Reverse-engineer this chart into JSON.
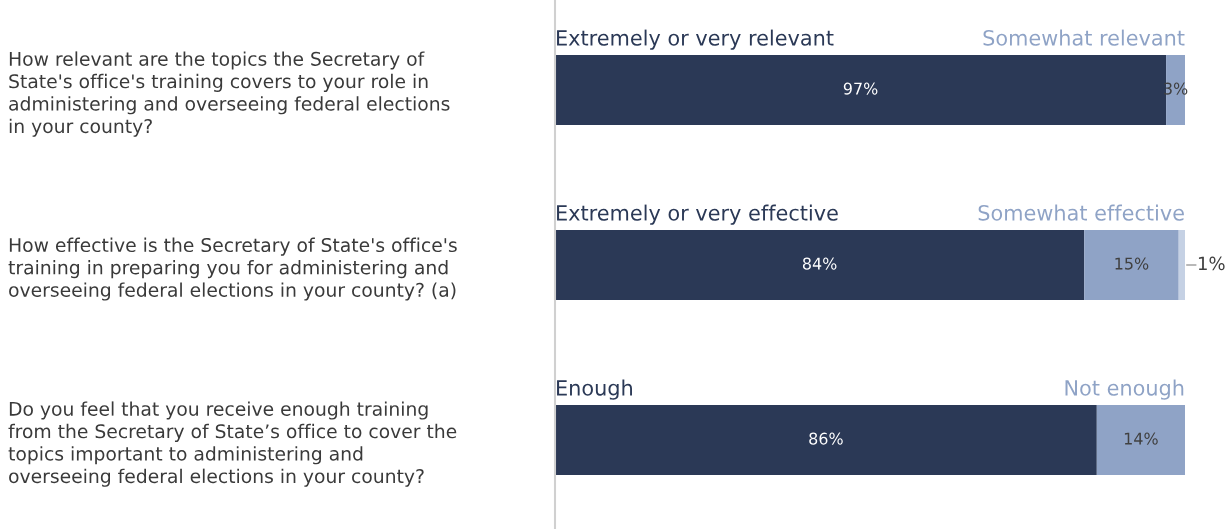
{
  "chart_data": {
    "type": "bar",
    "orientation": "horizontal",
    "stacked": true,
    "categories": [
      "How relevant are the topics the Secretary of\nState's office's training covers to your role in\nadministering and overseeing federal elections\nin your county?",
      "How effective is the Secretary of State's office's\ntraining in preparing you for administering and\noverseeing federal elections in your county? (a)",
      "Do you feel that you receive enough training\nfrom the Secretary of State’s office to cover the\ntopics important to administering and\noverseeing federal elections in your county?"
    ],
    "series": [
      {
        "color": "#2b3956",
        "values": [
          97,
          84,
          86
        ],
        "value_labels": [
          "97%",
          "84%",
          "86%"
        ]
      },
      {
        "color": "#8fa3c6",
        "values": [
          3,
          15,
          14
        ],
        "value_labels": [
          "3%",
          "15%",
          "14%"
        ]
      },
      {
        "color": "#c5d1e4",
        "values": [
          null,
          1,
          null
        ],
        "value_labels": [
          null,
          "1%",
          null
        ]
      }
    ],
    "xlim": [
      0,
      100
    ],
    "tick_labels": "y",
    "grid": false,
    "legend": false,
    "annotations": [
      "Extremely or very relevant",
      "Somewhat relevant",
      "Extremely or very effective",
      "Somewhat effective",
      "Enough",
      "Not enough"
    ]
  }
}
